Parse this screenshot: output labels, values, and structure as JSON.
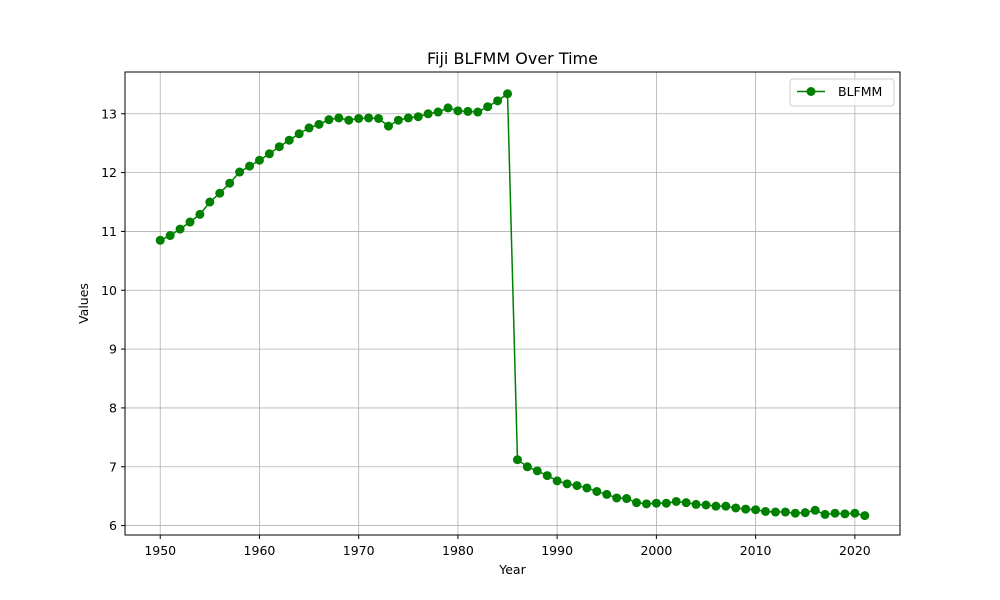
{
  "chart_data": {
    "type": "line",
    "title": "Fiji BLFMM Over Time",
    "xlabel": "Year",
    "ylabel": "Values",
    "xlim": [
      1946.45,
      2024.55
    ],
    "ylim": [
      5.84,
      13.71
    ],
    "xticks": [
      1950,
      1960,
      1970,
      1980,
      1990,
      2000,
      2010,
      2020
    ],
    "yticks": [
      6,
      7,
      8,
      9,
      10,
      11,
      12,
      13
    ],
    "grid": true,
    "legend_position": "top-right",
    "series": [
      {
        "name": "BLFMM",
        "color": "#008000",
        "marker": "circle",
        "x": [
          1950,
          1951,
          1952,
          1953,
          1954,
          1955,
          1956,
          1957,
          1958,
          1959,
          1960,
          1961,
          1962,
          1963,
          1964,
          1965,
          1966,
          1967,
          1968,
          1969,
          1970,
          1971,
          1972,
          1973,
          1974,
          1975,
          1976,
          1977,
          1978,
          1979,
          1980,
          1981,
          1982,
          1983,
          1984,
          1985,
          1986,
          1987,
          1988,
          1989,
          1990,
          1991,
          1992,
          1993,
          1994,
          1995,
          1996,
          1997,
          1998,
          1999,
          2000,
          2001,
          2002,
          2003,
          2004,
          2005,
          2006,
          2007,
          2008,
          2009,
          2010,
          2011,
          2012,
          2013,
          2014,
          2015,
          2016,
          2017,
          2018,
          2019,
          2020,
          2021
        ],
        "y": [
          10.85,
          10.93,
          11.04,
          11.16,
          11.29,
          11.5,
          11.65,
          11.82,
          12.01,
          12.11,
          12.21,
          12.32,
          12.44,
          12.55,
          12.66,
          12.76,
          12.82,
          12.9,
          12.93,
          12.89,
          12.92,
          12.93,
          12.92,
          12.79,
          12.89,
          12.93,
          12.95,
          13.0,
          13.03,
          13.1,
          13.05,
          13.04,
          13.03,
          13.12,
          13.22,
          13.34,
          7.12,
          7.0,
          6.93,
          6.85,
          6.76,
          6.71,
          6.68,
          6.64,
          6.58,
          6.53,
          6.47,
          6.46,
          6.39,
          6.37,
          6.38,
          6.38,
          6.41,
          6.39,
          6.36,
          6.35,
          6.33,
          6.33,
          6.3,
          6.28,
          6.27,
          6.24,
          6.23,
          6.23,
          6.21,
          6.22,
          6.26,
          6.19,
          6.21,
          6.2,
          6.21,
          6.17
        ]
      }
    ]
  }
}
